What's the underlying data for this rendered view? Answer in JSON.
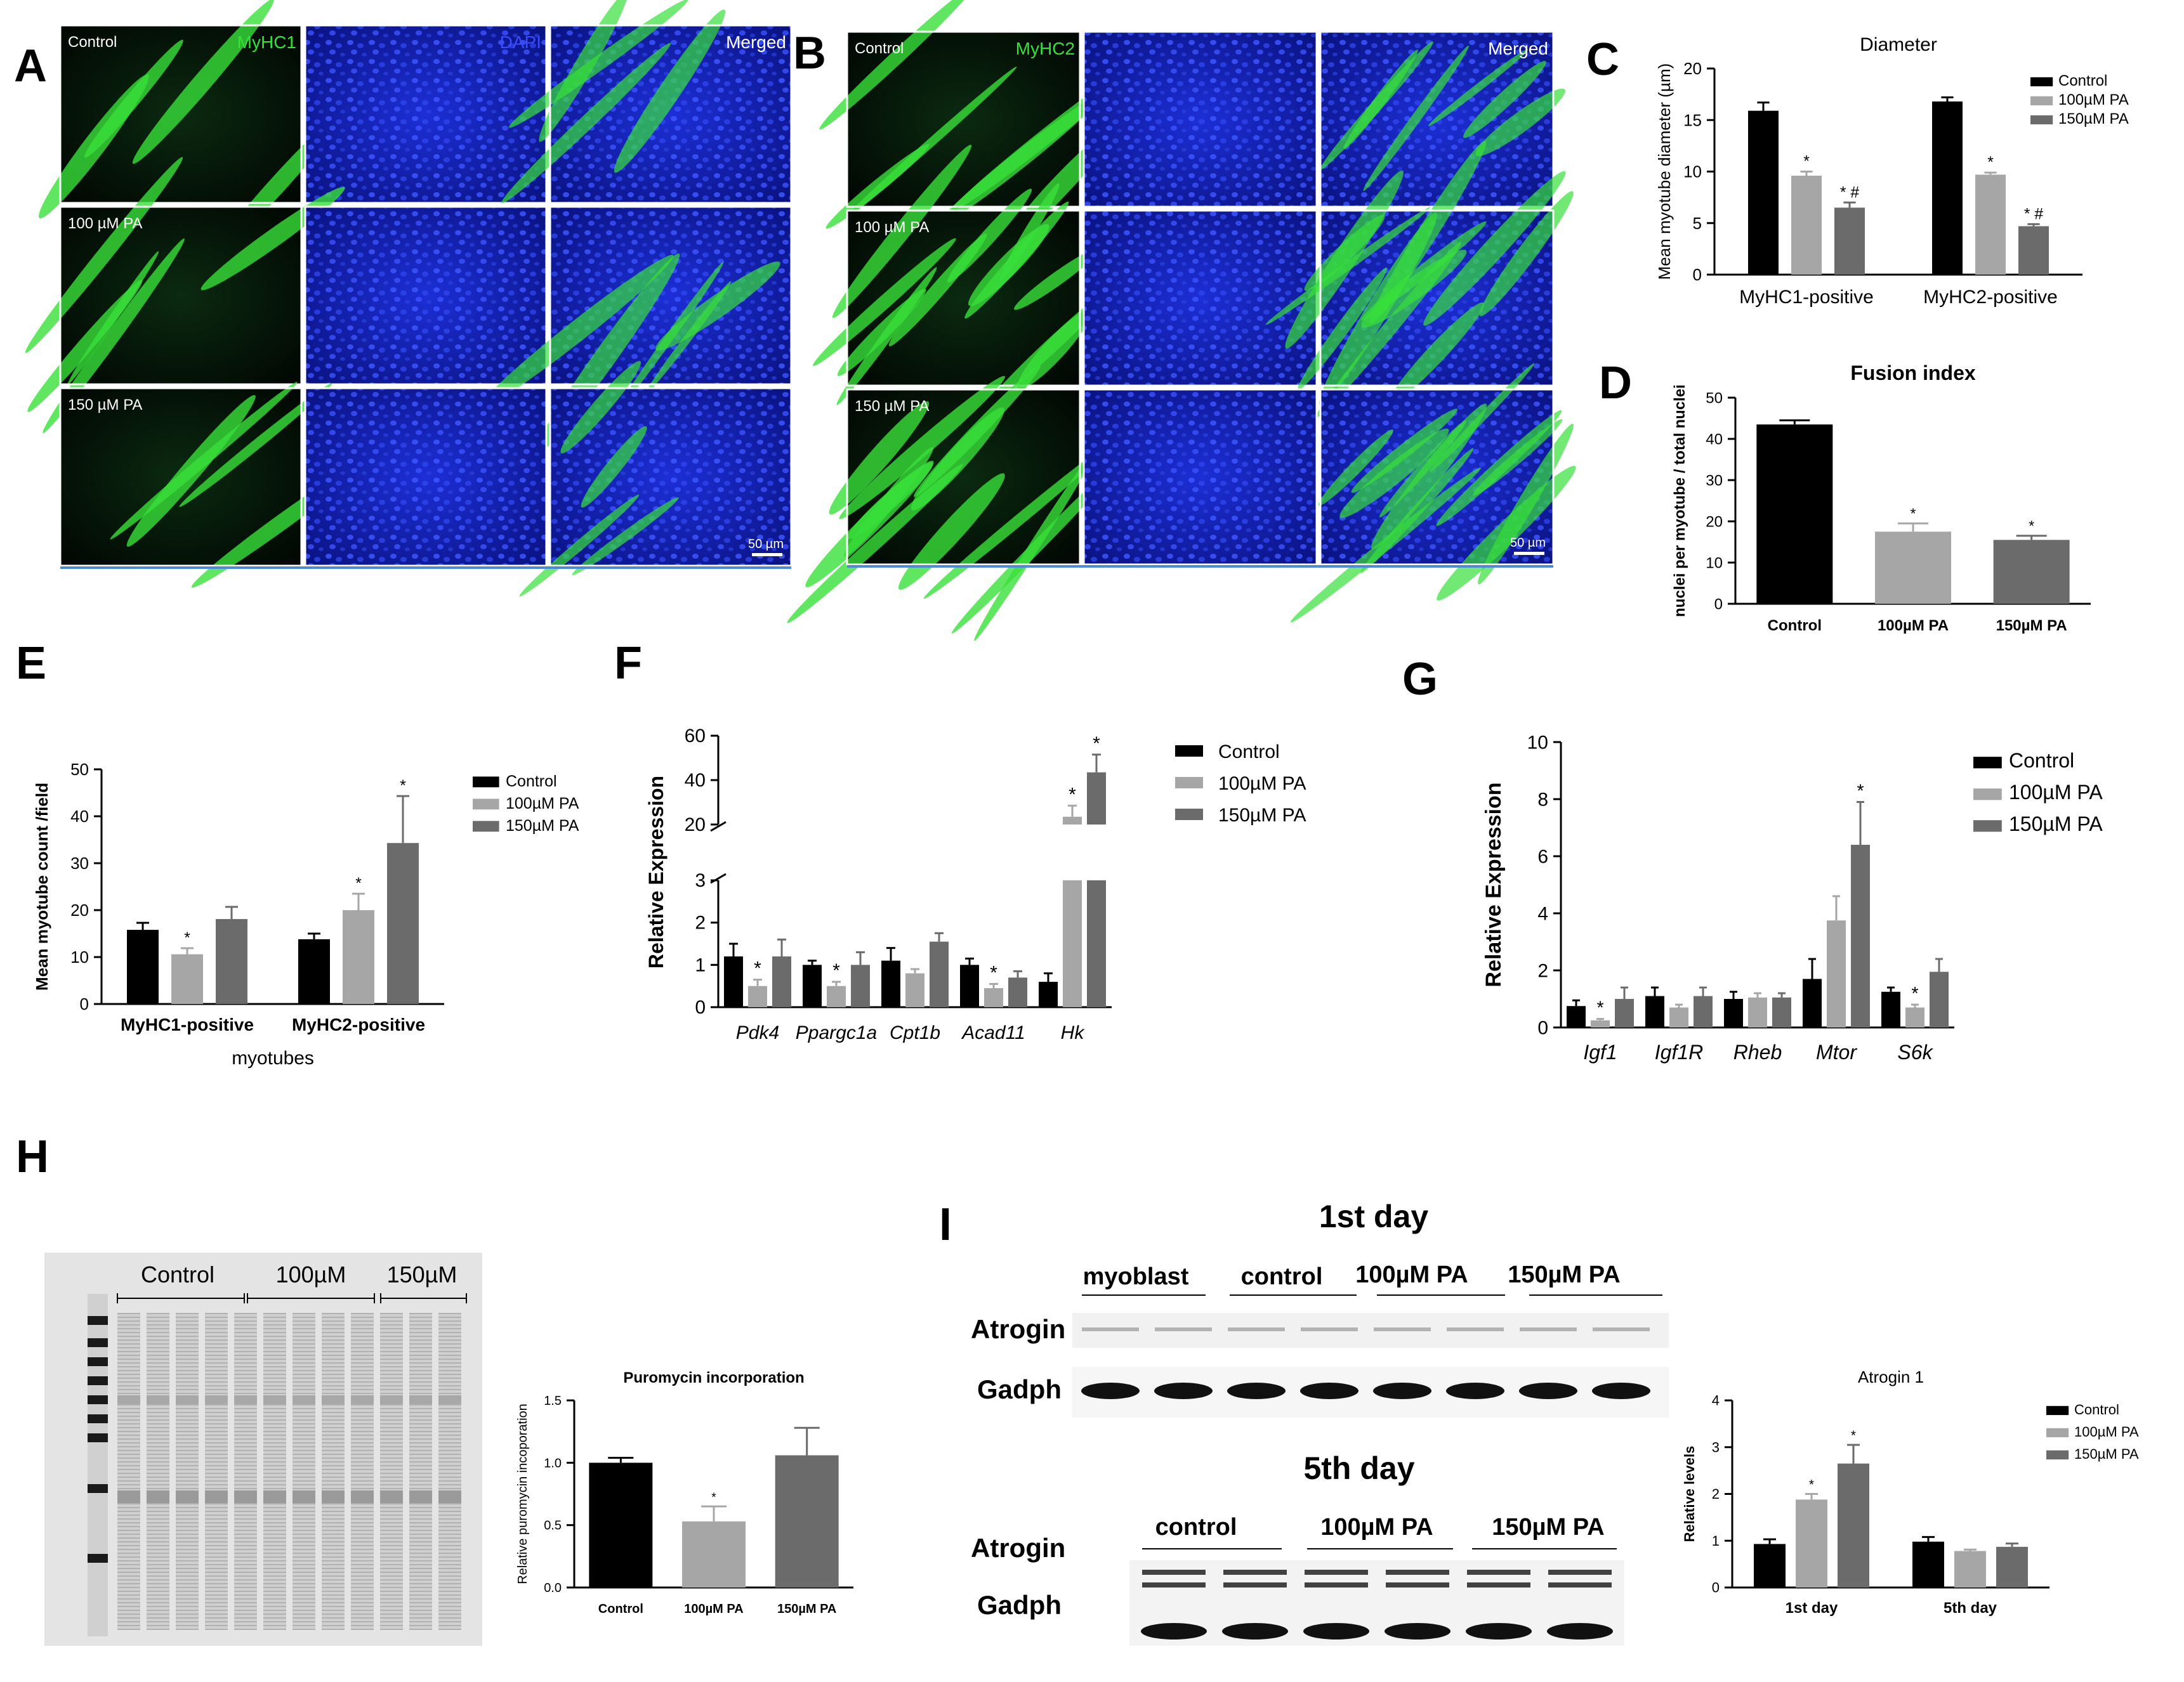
{
  "panels": {
    "A": {
      "letter": "A",
      "col_labels": [
        "MyHC1",
        "DAPI",
        "Merged"
      ],
      "row_labels": [
        "Control",
        "100 µM PA",
        "150 µM PA"
      ],
      "scale_bar": "50 µm"
    },
    "B": {
      "letter": "B",
      "col_labels": [
        "MyHC2",
        "",
        "Merged"
      ],
      "row_labels": [
        "Control",
        "100 µM PA",
        "150 µM PA"
      ],
      "scale_bar": "50 µm"
    },
    "H": {
      "letter": "H",
      "blot_groups": [
        "Control",
        "100µM",
        "150µM"
      ]
    },
    "I": {
      "letter": "I",
      "day1_title": "1st day",
      "day5_title": "5th day",
      "day1_groups": [
        "myoblast",
        "control",
        "100µM PA",
        "150µM PA"
      ],
      "day5_groups": [
        "control",
        "100µM PA",
        "150µM PA"
      ],
      "row_labels": [
        "Atrogin",
        "Gadph"
      ]
    }
  },
  "colors": {
    "control": "#000000",
    "pa100": "#a6a6a6",
    "pa150": "#6b6b6b",
    "myhc_green": "#38e03a",
    "dapi_blue": "#1a2ad8"
  },
  "chart_data": [
    {
      "id": "C",
      "letter": "C",
      "type": "bar",
      "title": "Diameter",
      "ylabel": "Mean myotube diameter (µm)",
      "xlabel": "",
      "categories": [
        "MyHC1-positive",
        "MyHC2-positive"
      ],
      "ylim": [
        0,
        20
      ],
      "yticks": [
        0,
        5,
        10,
        15,
        20
      ],
      "yticklabels": [
        "0",
        "5",
        "10",
        "15",
        "20"
      ],
      "series": [
        {
          "name": "Control",
          "color": "#000000",
          "values": [
            15.9,
            16.8
          ],
          "errors": [
            0.8,
            0.4
          ],
          "marks": [
            "",
            ""
          ]
        },
        {
          "name": "100µM PA",
          "color": "#a6a6a6",
          "values": [
            9.6,
            9.7
          ],
          "errors": [
            0.4,
            0.2
          ],
          "marks": [
            "*",
            "*"
          ]
        },
        {
          "name": "150µM PA",
          "color": "#6b6b6b",
          "values": [
            6.5,
            4.7
          ],
          "errors": [
            0.5,
            0.2
          ],
          "marks": [
            "* #",
            "* #"
          ]
        }
      ],
      "legend": "right"
    },
    {
      "id": "D",
      "letter": "D",
      "type": "bar",
      "title": "Fusion index",
      "ylabel": "nuclei per myotube / total nuclei",
      "xlabel": "",
      "categories": [
        "Control",
        "100µM PA",
        "150µM PA"
      ],
      "ylim": [
        0,
        50
      ],
      "yticks": [
        0,
        10,
        20,
        30,
        40,
        50
      ],
      "yticklabels": [
        "0",
        "10",
        "20",
        "30",
        "40",
        "50"
      ],
      "values": [
        43.5,
        17.5,
        15.5
      ],
      "errors": [
        1.0,
        2.0,
        1.0
      ],
      "marks": [
        "",
        "*",
        "*"
      ],
      "colors": [
        "#000000",
        "#a6a6a6",
        "#6b6b6b"
      ]
    },
    {
      "id": "E",
      "letter": "E",
      "type": "bar",
      "title": "",
      "ylabel": "Mean myotube count /field",
      "xlabel": "myotubes",
      "categories": [
        "MyHC1-positive",
        "MyHC2-positive"
      ],
      "ylim": [
        0,
        50
      ],
      "yticks": [
        0,
        10,
        20,
        30,
        40,
        50
      ],
      "yticklabels": [
        "0",
        "10",
        "20",
        "30",
        "40",
        "50"
      ],
      "series": [
        {
          "name": "Control",
          "color": "#000000",
          "values": [
            15.8,
            13.8
          ],
          "errors": [
            1.5,
            1.2
          ],
          "marks": [
            "",
            ""
          ]
        },
        {
          "name": "100µM PA",
          "color": "#a6a6a6",
          "values": [
            10.6,
            20.0
          ],
          "errors": [
            1.3,
            3.5
          ],
          "marks": [
            "*",
            "*"
          ]
        },
        {
          "name": "150µM PA",
          "color": "#6b6b6b",
          "values": [
            18.1,
            34.3
          ],
          "errors": [
            2.6,
            10.0
          ],
          "marks": [
            "",
            "*"
          ]
        }
      ],
      "legend": "right"
    },
    {
      "id": "F",
      "letter": "F",
      "type": "bar",
      "title": "",
      "ylabel": "Relative Expression",
      "xlabel": "",
      "categories": [
        "Pdk4",
        "Ppargc1a",
        "Cpt1b",
        "Acad11",
        "Hk"
      ],
      "broken_axis": {
        "lower": [
          0,
          3
        ],
        "upper": [
          20,
          60
        ]
      },
      "yticks": [
        0,
        1,
        2,
        3,
        20,
        40,
        60
      ],
      "yticklabels": [
        "0",
        "1",
        "2",
        "3",
        "20",
        "40",
        "60"
      ],
      "series": [
        {
          "name": "Control",
          "color": "#000000",
          "values": [
            1.2,
            1.0,
            1.1,
            1.0,
            0.6
          ],
          "errors": [
            0.3,
            0.1,
            0.3,
            0.15,
            0.2
          ],
          "marks": [
            "",
            "",
            "",
            "",
            ""
          ]
        },
        {
          "name": "100µM PA",
          "color": "#a6a6a6",
          "values": [
            0.5,
            0.5,
            0.8,
            0.45,
            23.5
          ],
          "errors": [
            0.15,
            0.1,
            0.1,
            0.1,
            5.0
          ],
          "marks": [
            "*",
            "*",
            "",
            "*",
            "*"
          ]
        },
        {
          "name": "150µM PA",
          "color": "#6b6b6b",
          "values": [
            1.2,
            1.0,
            1.55,
            0.7,
            43.5
          ],
          "errors": [
            0.4,
            0.3,
            0.2,
            0.15,
            8.0
          ],
          "marks": [
            "",
            "",
            "",
            "",
            "*"
          ]
        }
      ],
      "legend": "right"
    },
    {
      "id": "G",
      "letter": "G",
      "type": "bar",
      "title": "",
      "ylabel": "Relative Expression",
      "xlabel": "",
      "categories": [
        "Igf1",
        "Igf1R",
        "Rheb",
        "Mtor",
        "S6k"
      ],
      "ylim": [
        0,
        10
      ],
      "yticks": [
        0,
        2,
        4,
        6,
        8,
        10
      ],
      "yticklabels": [
        "0",
        "2",
        "4",
        "6",
        "8",
        "10"
      ],
      "series": [
        {
          "name": "Control",
          "color": "#000000",
          "values": [
            0.75,
            1.1,
            1.0,
            1.7,
            1.25
          ],
          "errors": [
            0.2,
            0.3,
            0.25,
            0.7,
            0.15
          ],
          "marks": [
            "",
            "",
            "",
            "",
            ""
          ]
        },
        {
          "name": "100µM PA",
          "color": "#a6a6a6",
          "values": [
            0.25,
            0.7,
            1.05,
            3.75,
            0.7
          ],
          "errors": [
            0.05,
            0.1,
            0.15,
            0.85,
            0.1
          ],
          "marks": [
            "*",
            "",
            "",
            "",
            "*"
          ]
        },
        {
          "name": "150µM PA",
          "color": "#6b6b6b",
          "values": [
            1.0,
            1.1,
            1.05,
            6.4,
            1.95
          ],
          "errors": [
            0.4,
            0.3,
            0.15,
            1.5,
            0.45
          ],
          "marks": [
            "",
            "",
            "",
            "*",
            ""
          ]
        }
      ],
      "legend": "right"
    },
    {
      "id": "H",
      "letter": "",
      "type": "bar",
      "title": "Puromycin incorporation",
      "ylabel": "Relative puromycin incoporation",
      "xlabel": "",
      "categories": [
        "Control",
        "100µM PA",
        "150µM PA"
      ],
      "ylim": [
        0,
        1.5
      ],
      "yticks": [
        0,
        0.5,
        1.0,
        1.5
      ],
      "yticklabels": [
        "0.0",
        "0.5",
        "1.0",
        "1.5"
      ],
      "values": [
        1.0,
        0.53,
        1.06
      ],
      "errors": [
        0.04,
        0.12,
        0.22
      ],
      "marks": [
        "",
        "*",
        ""
      ],
      "colors": [
        "#000000",
        "#a6a6a6",
        "#6b6b6b"
      ]
    },
    {
      "id": "I",
      "letter": "",
      "type": "bar",
      "title": "Atrogin 1",
      "ylabel": "Relative levels",
      "xlabel": "",
      "categories": [
        "1st day",
        "5th day"
      ],
      "ylim": [
        0,
        4
      ],
      "yticks": [
        0,
        1,
        2,
        3,
        4
      ],
      "yticklabels": [
        "0",
        "1",
        "2",
        "3",
        "4"
      ],
      "series": [
        {
          "name": "Control",
          "color": "#000000",
          "values": [
            0.93,
            0.98
          ],
          "errors": [
            0.1,
            0.1
          ],
          "marks": [
            "",
            ""
          ]
        },
        {
          "name": "100µM PA",
          "color": "#a6a6a6",
          "values": [
            1.88,
            0.78
          ],
          "errors": [
            0.12,
            0.03
          ],
          "marks": [
            "*",
            ""
          ]
        },
        {
          "name": "150µM PA",
          "color": "#6b6b6b",
          "values": [
            2.65,
            0.87
          ],
          "errors": [
            0.4,
            0.07
          ],
          "marks": [
            "*",
            ""
          ]
        }
      ],
      "legend": "right"
    }
  ]
}
